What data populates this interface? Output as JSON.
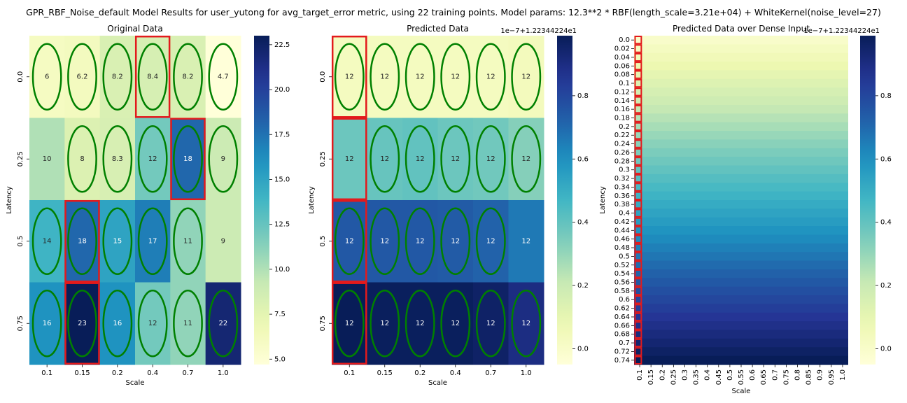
{
  "suptitle": "GPR_RBF_Noise_default Model Results for user_yutong for avg_target_error metric, using 22 training points. Model params: 12.3**2 * RBF(length_scale=3.21e+04) + WhiteKernel(noise_level=27)",
  "colors": {
    "ellipse": "#008000",
    "highlight": "#e31a1c",
    "colormap": "YlGnBu"
  },
  "chart_data": [
    {
      "type": "heatmap",
      "title": "Original Data",
      "xlabel": "Scale",
      "ylabel": "Latency",
      "x_ticks": [
        "0.1",
        "0.15",
        "0.2",
        "0.4",
        "0.7",
        "1.0"
      ],
      "y_ticks": [
        "0.0",
        "0.25",
        "0.5",
        "0.75"
      ],
      "values": [
        [
          6,
          6.2,
          8.2,
          8.4,
          8.2,
          4.7
        ],
        [
          10,
          8,
          8.3,
          12,
          18,
          9
        ],
        [
          14,
          18,
          15,
          17,
          11,
          9
        ],
        [
          16,
          23,
          16,
          12,
          11,
          22
        ]
      ],
      "cell_labels": [
        [
          "6",
          "6.2",
          "8.2",
          "8.4",
          "8.2",
          "4.7"
        ],
        [
          "10",
          "8",
          "8.3",
          "12",
          "18",
          "9"
        ],
        [
          "14",
          "18",
          "15",
          "17",
          "11",
          "9"
        ],
        [
          "16",
          "23",
          "16",
          "12",
          "11",
          "22"
        ]
      ],
      "training_points": [
        [
          0,
          0
        ],
        [
          0,
          1
        ],
        [
          0,
          2
        ],
        [
          0,
          3
        ],
        [
          0,
          4
        ],
        [
          0,
          5
        ],
        [
          1,
          1
        ],
        [
          1,
          2
        ],
        [
          1,
          3
        ],
        [
          1,
          4
        ],
        [
          1,
          5
        ],
        [
          2,
          0
        ],
        [
          2,
          1
        ],
        [
          2,
          2
        ],
        [
          2,
          3
        ],
        [
          2,
          4
        ],
        [
          3,
          0
        ],
        [
          3,
          1
        ],
        [
          3,
          2
        ],
        [
          3,
          3
        ],
        [
          3,
          4
        ],
        [
          3,
          5
        ]
      ],
      "highlighted_cells": [
        [
          0,
          3
        ],
        [
          1,
          4
        ],
        [
          2,
          1
        ],
        [
          3,
          1
        ]
      ],
      "colorbar": {
        "min": 4.7,
        "max": 23,
        "ticks": [
          "5.0",
          "7.5",
          "10.0",
          "12.5",
          "15.0",
          "17.5",
          "20.0",
          "22.5"
        ]
      }
    },
    {
      "type": "heatmap",
      "title": "Predicted Data",
      "xlabel": "Scale",
      "ylabel": "Latency",
      "x_ticks": [
        "0.1",
        "0.15",
        "0.2",
        "0.4",
        "0.7",
        "1.0"
      ],
      "y_ticks": [
        "0.0",
        "0.25",
        "0.5",
        "0.75"
      ],
      "values": [
        [
          0.03,
          0.03,
          0.03,
          0.03,
          0.03,
          0.04
        ],
        [
          0.38,
          0.39,
          0.4,
          0.38,
          0.37,
          0.33
        ],
        [
          0.75,
          0.75,
          0.75,
          0.74,
          0.72,
          0.66
        ],
        [
          0.99,
          0.98,
          0.98,
          0.98,
          0.96,
          0.9
        ]
      ],
      "cell_labels": [
        [
          "12",
          "12",
          "12",
          "12",
          "12",
          "12"
        ],
        [
          "12",
          "12",
          "12",
          "12",
          "12",
          "12"
        ],
        [
          "12",
          "12",
          "12",
          "12",
          "12",
          "12"
        ],
        [
          "12",
          "12",
          "12",
          "12",
          "12",
          "12"
        ]
      ],
      "training_points": [
        [
          0,
          0
        ],
        [
          0,
          1
        ],
        [
          0,
          2
        ],
        [
          0,
          3
        ],
        [
          0,
          4
        ],
        [
          0,
          5
        ],
        [
          1,
          1
        ],
        [
          1,
          2
        ],
        [
          1,
          3
        ],
        [
          1,
          4
        ],
        [
          1,
          5
        ],
        [
          2,
          0
        ],
        [
          2,
          1
        ],
        [
          2,
          2
        ],
        [
          2,
          3
        ],
        [
          2,
          4
        ],
        [
          3,
          0
        ],
        [
          3,
          1
        ],
        [
          3,
          2
        ],
        [
          3,
          3
        ],
        [
          3,
          4
        ],
        [
          3,
          5
        ]
      ],
      "highlighted_cells": [
        [
          0,
          0
        ],
        [
          1,
          0
        ],
        [
          2,
          0
        ],
        [
          3,
          0
        ]
      ],
      "colorbar": {
        "min": -0.05,
        "max": 0.99,
        "offset_label": "1e−7+1.22344224e1",
        "ticks": [
          "0.0",
          "0.2",
          "0.4",
          "0.6",
          "0.8"
        ]
      }
    },
    {
      "type": "heatmap",
      "title": "Predicted Data over Dense Input",
      "xlabel": "Scale",
      "ylabel": "Latency",
      "x_ticks": [
        "0.1",
        "0.15",
        "0.2",
        "0.25",
        "0.3",
        "0.35",
        "0.4",
        "0.45",
        "0.5",
        "0.55",
        "0.6",
        "0.65",
        "0.7",
        "0.75",
        "0.8",
        "0.85",
        "0.9",
        "0.95",
        "1.0"
      ],
      "y_ticks": [
        "0.0",
        "0.02",
        "0.04",
        "0.06",
        "0.08",
        "0.1",
        "0.12",
        "0.14",
        "0.16",
        "0.18",
        "0.2",
        "0.22",
        "0.24",
        "0.26",
        "0.28",
        "0.3",
        "0.32",
        "0.34",
        "0.36",
        "0.38",
        "0.4",
        "0.42",
        "0.44",
        "0.46",
        "0.48",
        "0.5",
        "0.52",
        "0.54",
        "0.56",
        "0.58",
        "0.6",
        "0.62",
        "0.64",
        "0.66",
        "0.68",
        "0.7",
        "0.72",
        "0.74"
      ],
      "value_range_top_to_bottom": [
        0.0,
        0.99
      ],
      "highlighted_column": "0.1",
      "colorbar": {
        "min": -0.05,
        "max": 0.99,
        "offset_label": "1e−7+1.22344224e1",
        "ticks": [
          "0.0",
          "0.2",
          "0.4",
          "0.6",
          "0.8"
        ]
      }
    }
  ]
}
